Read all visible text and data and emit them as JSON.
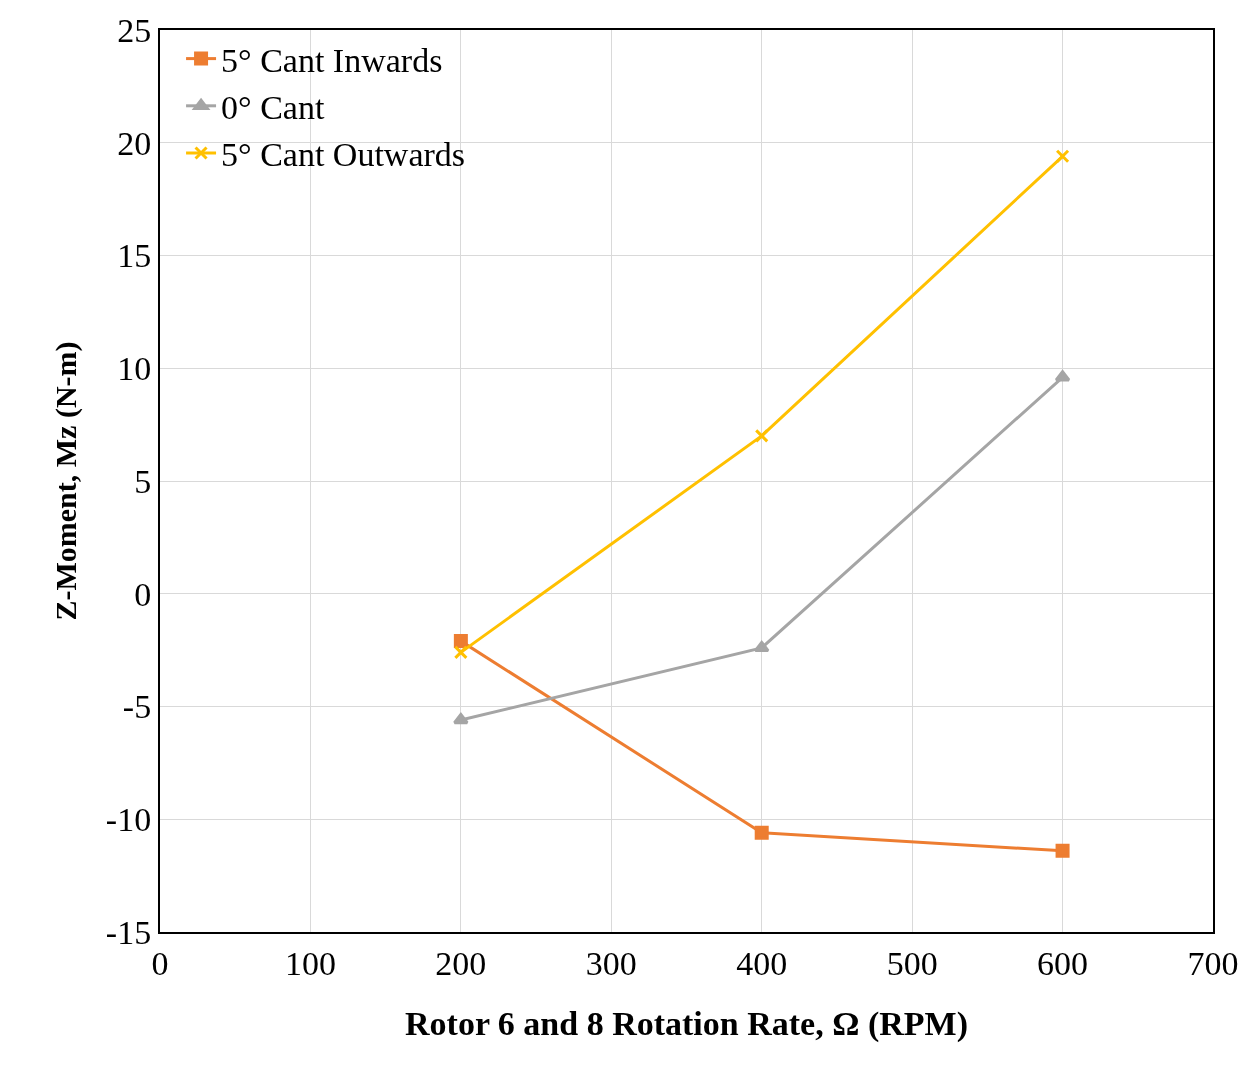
{
  "chart_data": {
    "type": "line",
    "xlabel": "Rotor 6 and 8 Rotation Rate, Ω (RPM)",
    "ylabel": "Z-Moment, Mz (N-m)",
    "x": [
      200,
      400,
      600
    ],
    "series": [
      {
        "name": "5° Cant Inwards",
        "color": "#ed7d31",
        "marker": "square",
        "values": [
          -2.1,
          -10.6,
          -11.4
        ]
      },
      {
        "name": "0° Cant",
        "color": "#a5a5a5",
        "marker": "triangle",
        "values": [
          -5.6,
          -2.4,
          9.6
        ]
      },
      {
        "name": "5° Cant Outwards",
        "color": "#ffc000",
        "marker": "cross",
        "values": [
          -2.6,
          7.0,
          19.4
        ]
      }
    ],
    "xlim": [
      0,
      700
    ],
    "xticks": [
      0,
      100,
      200,
      300,
      400,
      500,
      600,
      700
    ],
    "ylim": [
      -15,
      25
    ],
    "yticks": [
      -15,
      -10,
      -5,
      0,
      5,
      10,
      15,
      20,
      25
    ],
    "grid": true,
    "legend": "top left",
    "line_style": "solid"
  }
}
